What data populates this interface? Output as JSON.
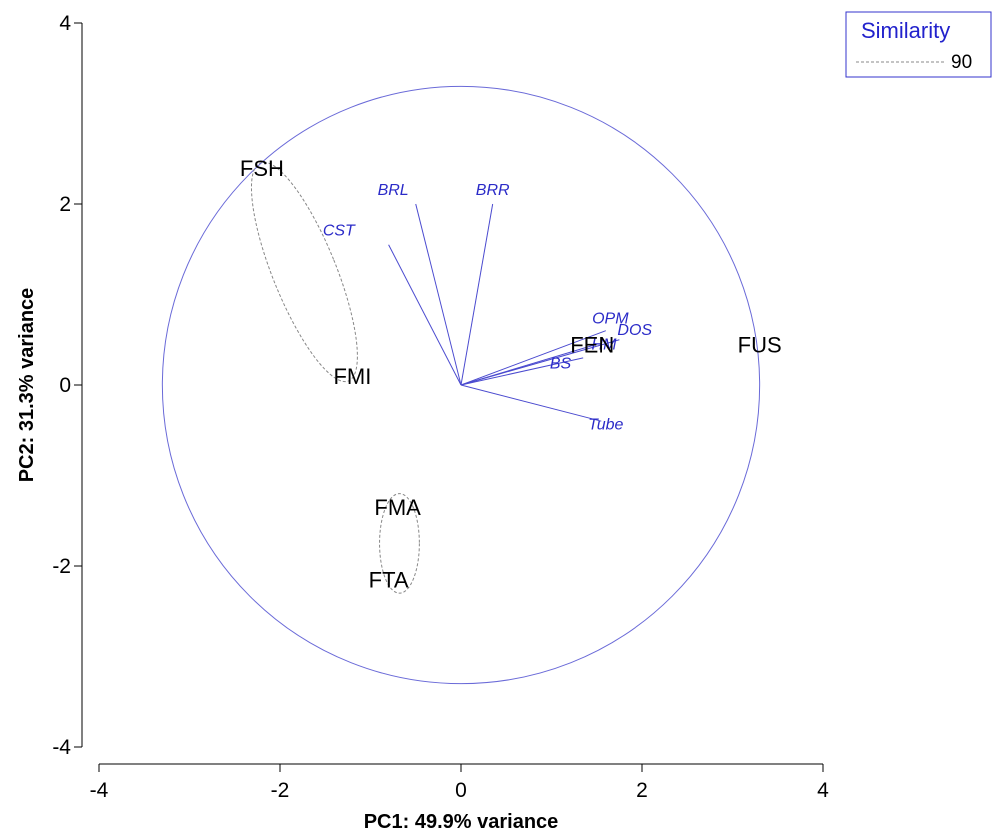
{
  "chart_data": {
    "type": "scatter",
    "subtype": "pca-biplot",
    "xlabel": "PC1: 49.9% variance",
    "ylabel": "PC2: 31.3% variance",
    "xlim": [
      -4,
      4
    ],
    "ylim": [
      -4,
      4
    ],
    "xticks": [
      -4,
      -2,
      0,
      2,
      4
    ],
    "yticks": [
      -4,
      -2,
      0,
      2,
      4
    ],
    "grid": false,
    "colors": {
      "vector": "#4a4acf",
      "circle": "#6a6ad8",
      "cluster": "#888888",
      "legend_title": "#2222cc"
    },
    "samples": [
      {
        "label": "FSH",
        "x": -2.2,
        "y": 2.4
      },
      {
        "label": "FMI",
        "x": -1.2,
        "y": 0.1
      },
      {
        "label": "FMA",
        "x": -0.7,
        "y": -1.35
      },
      {
        "label": "FTA",
        "x": -0.8,
        "y": -2.15
      },
      {
        "label": "FEN",
        "x": 1.45,
        "y": 0.45
      },
      {
        "label": "FUS",
        "x": 3.3,
        "y": 0.45
      }
    ],
    "vectors": [
      {
        "label": "BRL",
        "x": -0.5,
        "y": 2.0
      },
      {
        "label": "BRR",
        "x": 0.35,
        "y": 2.0
      },
      {
        "label": "CST",
        "x": -0.8,
        "y": 1.55
      },
      {
        "label": "OPM",
        "x": 1.6,
        "y": 0.6
      },
      {
        "label": "DOS",
        "x": 1.75,
        "y": 0.5
      },
      {
        "label": "HM",
        "x": 1.5,
        "y": 0.45
      },
      {
        "label": "BS",
        "x": 1.35,
        "y": 0.3
      },
      {
        "label": "Tube",
        "x": 1.55,
        "y": -0.4
      }
    ],
    "vector_labels": [
      {
        "label": "BRL",
        "x": -0.75,
        "y": 2.1
      },
      {
        "label": "BRR",
        "x": 0.35,
        "y": 2.1
      },
      {
        "label": "CST",
        "x": -1.35,
        "y": 1.65
      },
      {
        "label": "OPM",
        "x": 1.65,
        "y": 0.68
      },
      {
        "label": "DOS",
        "x": 1.92,
        "y": 0.55
      },
      {
        "label": "HM",
        "x": 1.58,
        "y": 0.39
      },
      {
        "label": "BS",
        "x": 1.1,
        "y": 0.18
      },
      {
        "label": "Tube",
        "x": 1.6,
        "y": -0.49
      }
    ],
    "correlation_circle": {
      "cx": 0,
      "cy": 0,
      "r": 3.3
    },
    "similarity_clusters": [
      {
        "members": [
          "FSH",
          "FMI"
        ],
        "cx": -1.73,
        "cy": 1.25,
        "rx": 0.35,
        "ry": 1.3,
        "angle_deg": -22
      },
      {
        "members": [
          "FMA",
          "FTA"
        ],
        "cx": -0.68,
        "cy": -1.75,
        "rx": 0.22,
        "ry": 0.55,
        "angle_deg": 0
      }
    ],
    "legend": {
      "title": "Similarity",
      "value": "90",
      "position": "top-right"
    }
  }
}
